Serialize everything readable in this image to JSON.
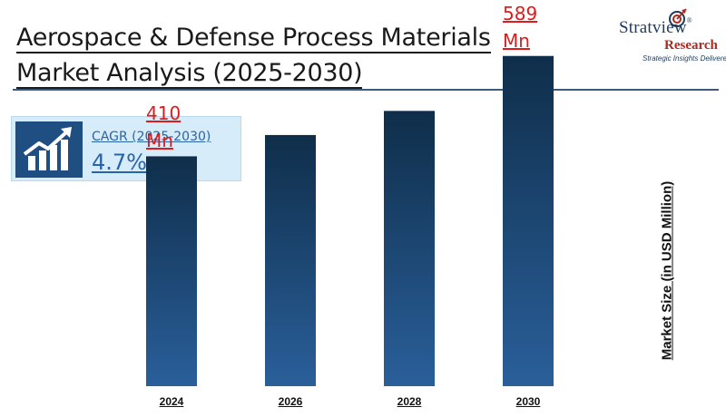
{
  "header": {
    "title_line1": "Aerospace & Defense Process Materials",
    "title_line2": "Market Analysis (2025-2030)"
  },
  "logo": {
    "name": "Stratview",
    "registered": "®",
    "research": "Research",
    "tagline": "Strategic Insights Delivered"
  },
  "cagr": {
    "label": "CAGR (2025-2030)",
    "value": "4.7%",
    "icon": "growth-chart-icon"
  },
  "colors": {
    "bar_top": "#0f2e4a",
    "bar_bottom": "#2a5f9a",
    "label_red": "#e01b1b",
    "accent_blue": "#2a64a8"
  },
  "chart_data": {
    "type": "bar",
    "categories": [
      "2024",
      "2026",
      "2028",
      "2030"
    ],
    "values": [
      410,
      448,
      491,
      589
    ],
    "data_labels": [
      {
        "index": 0,
        "line1": "410",
        "line2": "Mn"
      },
      {
        "index": 3,
        "line1": "589",
        "line2": "Mn"
      }
    ],
    "title": "Aerospace & Defense Process Materials Market Analysis (2025-2030)",
    "xlabel": "",
    "ylabel": "Market Size (in  USD Million)",
    "ylim": [
      0,
      650
    ],
    "grid": false,
    "legend": "none"
  }
}
